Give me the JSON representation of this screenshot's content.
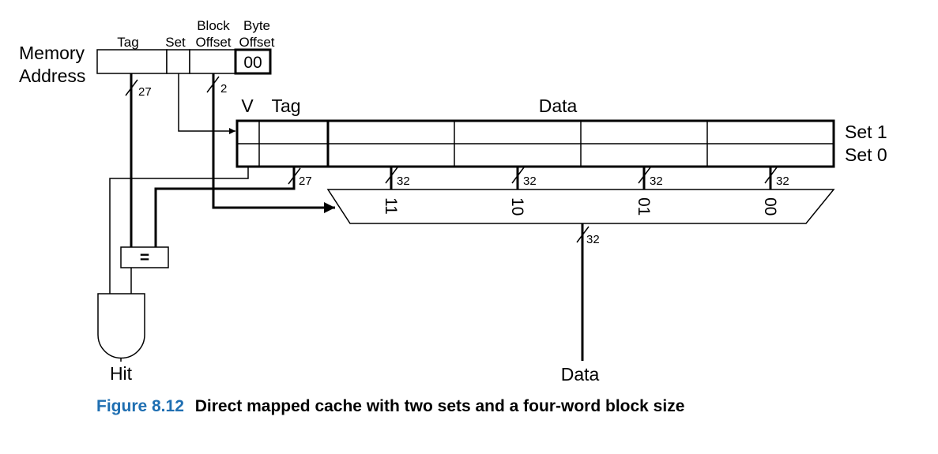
{
  "address": {
    "label_line1": "Memory",
    "label_line2": "Address",
    "fields": {
      "tag": "Tag",
      "set": "Set",
      "block_offset_line1": "Block",
      "block_offset_line2": "Offset",
      "byte_offset_line1": "Byte",
      "byte_offset_line2": "Offset",
      "byte_offset_value": "00"
    },
    "bus_widths": {
      "tag": "27",
      "block_offset": "2"
    }
  },
  "cache": {
    "headers": {
      "valid": "V",
      "tag": "Tag",
      "data": "Data"
    },
    "sets": [
      "Set 1",
      "Set 0"
    ],
    "bus_widths": {
      "tag": "27",
      "words": [
        "32",
        "32",
        "32",
        "32"
      ]
    }
  },
  "mux": {
    "inputs": [
      "11",
      "10",
      "01",
      "00"
    ],
    "output_width": "32"
  },
  "comparator": {
    "symbol": "="
  },
  "outputs": {
    "hit": "Hit",
    "data": "Data"
  },
  "caption": {
    "number": "Figure 8.12",
    "text": "Direct mapped cache with two sets and a four-word block size"
  },
  "colors": {
    "caption_number": "#1f6fb2",
    "lines": "#000000"
  }
}
